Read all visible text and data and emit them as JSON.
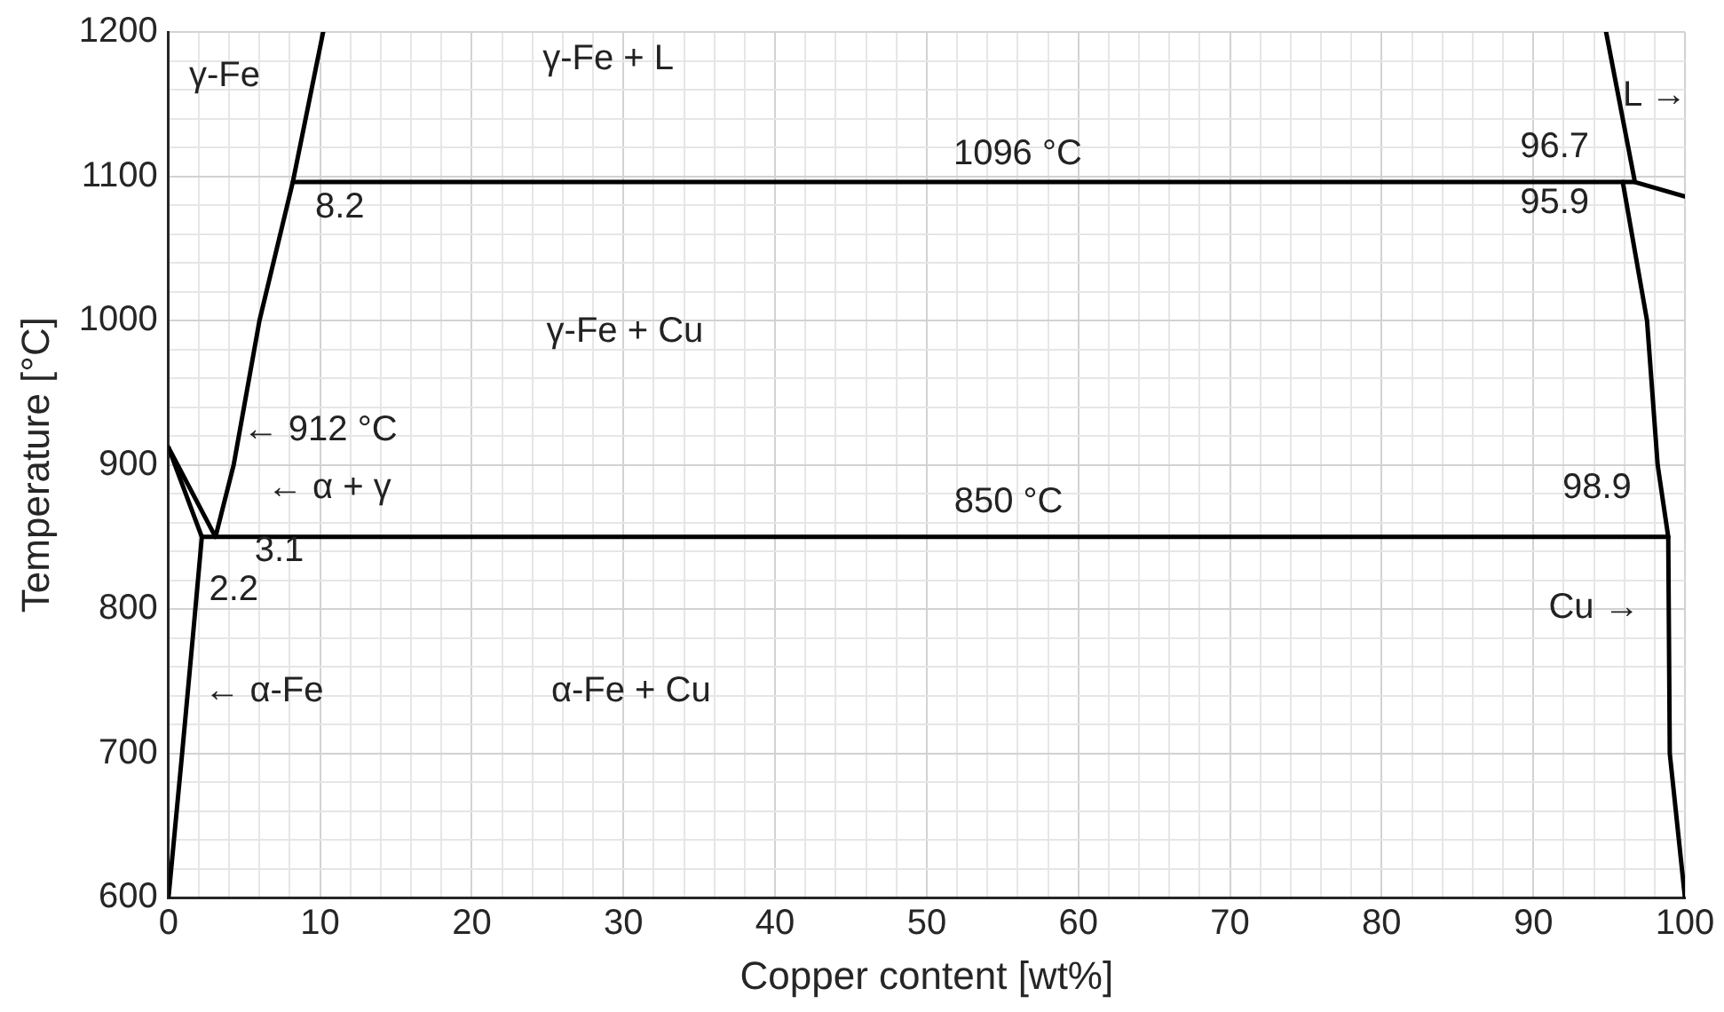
{
  "chart_data": {
    "type": "line",
    "xlabel": "Copper content [wt%]",
    "ylabel": "Temperature [°C]",
    "xlim": [
      0,
      100
    ],
    "ylim": [
      600,
      1200
    ],
    "xticks": [
      0,
      {
        "value": 2,
        "label": null
      },
      {
        "value": 4,
        "label": null
      },
      {
        "value": 6,
        "label": null
      },
      {
        "value": 8,
        "label": null
      },
      10,
      {
        "value": 12,
        "label": null
      },
      {
        "value": 14,
        "label": null
      },
      {
        "value": 16,
        "label": null
      },
      {
        "value": 18,
        "label": null
      },
      20,
      {
        "value": 22,
        "label": null
      },
      {
        "value": 24,
        "label": null
      },
      {
        "value": 26,
        "label": null
      },
      {
        "value": 28,
        "label": null
      },
      30,
      {
        "value": 32,
        "label": null
      },
      {
        "value": 34,
        "label": null
      },
      {
        "value": 36,
        "label": null
      },
      {
        "value": 38,
        "label": null
      },
      40,
      {
        "value": 42,
        "label": null
      },
      {
        "value": 44,
        "label": null
      },
      {
        "value": 46,
        "label": null
      },
      {
        "value": 48,
        "label": null
      },
      50,
      {
        "value": 52,
        "label": null
      },
      {
        "value": 54,
        "label": null
      },
      {
        "value": 56,
        "label": null
      },
      {
        "value": 58,
        "label": null
      },
      60,
      {
        "value": 62,
        "label": null
      },
      {
        "value": 64,
        "label": null
      },
      {
        "value": 66,
        "label": null
      },
      {
        "value": 68,
        "label": null
      },
      70,
      {
        "value": 72,
        "label": null
      },
      {
        "value": 74,
        "label": null
      },
      {
        "value": 76,
        "label": null
      },
      {
        "value": 78,
        "label": null
      },
      80,
      {
        "value": 82,
        "label": null
      },
      {
        "value": 84,
        "label": null
      },
      {
        "value": 86,
        "label": null
      },
      {
        "value": 88,
        "label": null
      },
      90,
      {
        "value": 92,
        "label": null
      },
      {
        "value": 94,
        "label": null
      },
      {
        "value": 96,
        "label": null
      },
      {
        "value": 98,
        "label": null
      },
      100
    ],
    "yticks": [
      600,
      {
        "value": 620,
        "label": null
      },
      {
        "value": 640,
        "label": null
      },
      {
        "value": 660,
        "label": null
      },
      {
        "value": 680,
        "label": null
      },
      700,
      {
        "value": 720,
        "label": null
      },
      {
        "value": 740,
        "label": null
      },
      {
        "value": 760,
        "label": null
      },
      {
        "value": 780,
        "label": null
      },
      800,
      {
        "value": 820,
        "label": null
      },
      {
        "value": 840,
        "label": null
      },
      {
        "value": 860,
        "label": null
      },
      {
        "value": 880,
        "label": null
      },
      900,
      {
        "value": 920,
        "label": null
      },
      {
        "value": 940,
        "label": null
      },
      {
        "value": 960,
        "label": null
      },
      {
        "value": 980,
        "label": null
      },
      1000,
      {
        "value": 1020,
        "label": null
      },
      {
        "value": 1040,
        "label": null
      },
      {
        "value": 1060,
        "label": null
      },
      {
        "value": 1080,
        "label": null
      },
      1100,
      {
        "value": 1120,
        "label": null
      },
      {
        "value": 1140,
        "label": null
      },
      {
        "value": 1160,
        "label": null
      },
      {
        "value": 1180,
        "label": null
      },
      1200
    ],
    "grid": true,
    "legend": false,
    "marker": "none",
    "line_style": "solid",
    "series": [
      {
        "color": "#000000",
        "x": [
          0,
          0.9,
          1.6,
          2.2,
          0
        ],
        "values": [
          600,
          700,
          780,
          850,
          912
        ]
      },
      {
        "color": "#000000",
        "x": [
          0,
          3.1,
          4.3,
          6.0,
          8.2,
          10.2
        ],
        "values": [
          912,
          850,
          900,
          1000,
          1096,
          1200
        ]
      },
      {
        "color": "#000000",
        "x": [
          2.2,
          98.9
        ],
        "values": [
          850,
          850
        ]
      },
      {
        "color": "#000000",
        "x": [
          8.2,
          96.7,
          100
        ],
        "values": [
          1096,
          1096,
          1086
        ]
      },
      {
        "color": "#000000",
        "x": [
          94.8,
          96.7
        ],
        "values": [
          1200,
          1096
        ]
      },
      {
        "color": "#000000",
        "x": [
          95.9,
          97.5,
          98.2,
          98.9,
          99.0,
          100
        ],
        "values": [
          1096,
          1000,
          900,
          850,
          700,
          600
        ]
      }
    ],
    "annotations": [
      "γ-Fe + L",
      "γ-Fe",
      "1096 °C",
      "8.2",
      "L →",
      "96.7",
      "95.9",
      "γ-Fe + Cu",
      "← 912 °C",
      "← α + γ",
      "850 °C",
      "98.9",
      "3.1",
      "2.2",
      "Cu →",
      "← α-Fe",
      "α-Fe + Cu"
    ]
  }
}
